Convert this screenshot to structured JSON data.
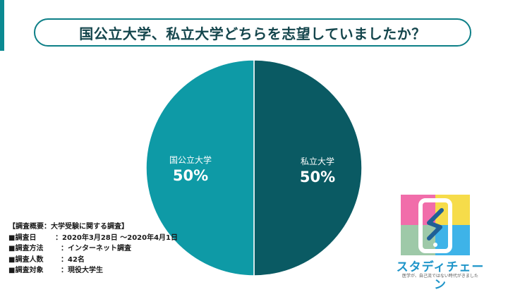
{
  "title": "国公立大学、私立大学どちらを志望していましたか？",
  "chart_data": {
    "type": "pie",
    "slices": [
      {
        "label": "国公立大学",
        "value": 50,
        "display": "50%",
        "color": "#0e9aa6"
      },
      {
        "label": "私立大学",
        "value": 50,
        "display": "50%",
        "color": "#0a5a63"
      }
    ],
    "title": "国公立大学、私立大学どちらを志望していましたか？"
  },
  "survey": {
    "heading": "【調査概要：大学受験に関する調査】",
    "rows": [
      {
        "key": "■調査日",
        "value": "：2020年3月28日 ～2020年4月1日"
      },
      {
        "key": "■調査方法",
        "value": "：インターネット調査"
      },
      {
        "key": "■調査人数",
        "value": "：42名"
      },
      {
        "key": "■調査対象",
        "value": "：現役大学生"
      }
    ]
  },
  "brand": {
    "name": "スタディチェーン",
    "tagline": "医学が、自己流ではない時代がきました",
    "logo_colors": [
      "#f16daa",
      "#f6dc4a",
      "#9ec9a8",
      "#3eb3e8"
    ],
    "logo_icon": "smartphone-icon"
  }
}
